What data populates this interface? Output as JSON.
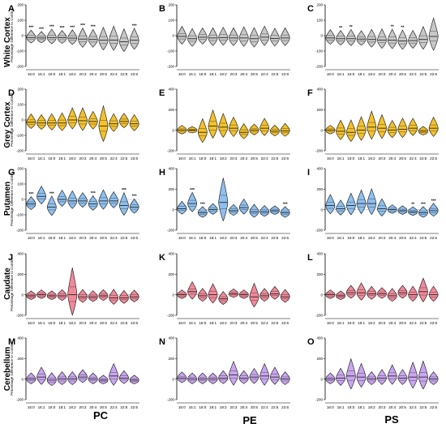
{
  "figure": {
    "rows": [
      {
        "label": "White Cortex",
        "color": "#c8c8c8"
      },
      {
        "label": "Grey Cortex",
        "color": "#f2c12e"
      },
      {
        "label": "Putamen",
        "color": "#8fc0ee"
      },
      {
        "label": "Caudate",
        "color": "#f08a9a"
      },
      {
        "label": "Cerebellum",
        "color": "#c9a7ee"
      }
    ],
    "columns": [
      "PC",
      "PE",
      "PS"
    ],
    "ylabel": "Percentage Difference to Control",
    "categories": [
      "16:0",
      "16:1",
      "18:0",
      "18:1",
      "18:2",
      "20:3",
      "20:4",
      "20:5",
      "22:4",
      "22:5",
      "22:6"
    ]
  },
  "chart_data": [
    {
      "panel": "A",
      "type": "violin",
      "ylim": [
        -200,
        200
      ],
      "yticks": [
        -200,
        -100,
        0,
        100,
        200
      ],
      "medians": [
        -12,
        -15,
        -12,
        -14,
        -16,
        -22,
        -25,
        -30,
        -28,
        -40,
        -30
      ],
      "spread": [
        40,
        35,
        45,
        40,
        45,
        60,
        55,
        70,
        75,
        70,
        65
      ],
      "stars": [
        "***",
        "***",
        "***",
        "***",
        "***",
        "***",
        "***",
        "",
        "",
        "",
        "***"
      ]
    },
    {
      "panel": "B",
      "type": "violin",
      "ylim": [
        -200,
        200
      ],
      "yticks": [
        -200,
        -100,
        0,
        100,
        200
      ],
      "medians": [
        -5,
        -20,
        -10,
        -15,
        -12,
        -15,
        -15,
        -20,
        -10,
        -18,
        -15
      ],
      "spread": [
        55,
        55,
        50,
        55,
        55,
        55,
        60,
        60,
        60,
        55,
        55
      ],
      "stars": [
        "",
        "",
        "",
        "",
        "",
        "",
        "",
        "",
        "",
        "",
        ""
      ]
    },
    {
      "panel": "C",
      "type": "violin",
      "ylim": [
        -200,
        200
      ],
      "yticks": [
        -200,
        -100,
        0,
        100,
        200
      ],
      "medians": [
        -15,
        -20,
        -20,
        -22,
        -25,
        -28,
        -30,
        -35,
        -32,
        -25,
        -5
      ],
      "spread": [
        45,
        45,
        50,
        45,
        55,
        60,
        60,
        60,
        55,
        70,
        100
      ],
      "stars": [
        "",
        "**",
        "**",
        "",
        "",
        "",
        "**",
        "**",
        "",
        "",
        ""
      ]
    },
    {
      "panel": "D",
      "type": "violin",
      "ylim": [
        -200,
        200
      ],
      "yticks": [
        -200,
        -100,
        0,
        100,
        200
      ],
      "medians": [
        -15,
        -20,
        -20,
        -20,
        0,
        -5,
        -10,
        -40,
        -25,
        -10,
        -25
      ],
      "spread": [
        45,
        45,
        50,
        55,
        65,
        70,
        55,
        110,
        55,
        45,
        50
      ],
      "stars": [
        "",
        "",
        "",
        "",
        "",
        "",
        "",
        "",
        "",
        "",
        ""
      ]
    },
    {
      "panel": "E",
      "type": "violin",
      "ylim": [
        -200,
        400
      ],
      "yticks": [
        -200,
        0,
        200,
        400
      ],
      "medians": [
        0,
        0,
        -20,
        40,
        30,
        20,
        -20,
        0,
        20,
        -10,
        -5
      ],
      "spread": [
        40,
        30,
        110,
        130,
        110,
        90,
        70,
        50,
        80,
        50,
        60
      ],
      "stars": [
        "",
        "",
        "",
        "",
        "",
        "",
        "",
        "",
        "",
        "",
        ""
      ]
    },
    {
      "panel": "F",
      "type": "violin",
      "ylim": [
        -200,
        400
      ],
      "yticks": [
        -200,
        0,
        200,
        400
      ],
      "medians": [
        0,
        -10,
        -20,
        0,
        30,
        20,
        0,
        10,
        20,
        -10,
        20
      ],
      "spread": [
        40,
        90,
        100,
        110,
        130,
        110,
        80,
        90,
        80,
        40,
        90
      ],
      "stars": [
        "",
        "",
        "",
        "",
        "",
        "",
        "",
        "",
        "",
        "",
        ""
      ]
    },
    {
      "panel": "G",
      "type": "violin",
      "ylim": [
        -200,
        200
      ],
      "yticks": [
        -200,
        -100,
        0,
        100,
        200
      ],
      "medians": [
        -30,
        20,
        -50,
        0,
        -10,
        -10,
        -30,
        -10,
        -10,
        -40,
        -50
      ],
      "spread": [
        40,
        55,
        60,
        50,
        55,
        45,
        45,
        60,
        50,
        70,
        45
      ],
      "stars": [
        "***",
        "",
        "***",
        "",
        "",
        "",
        "***",
        "",
        "",
        "***",
        "***"
      ]
    },
    {
      "panel": "H",
      "type": "violin",
      "ylim": [
        -200,
        400
      ],
      "yticks": [
        -200,
        0,
        200,
        400
      ],
      "medians": [
        10,
        60,
        -30,
        0,
        70,
        -10,
        20,
        -20,
        -20,
        -10,
        -30
      ],
      "spread": [
        60,
        90,
        50,
        50,
        200,
        50,
        70,
        60,
        50,
        40,
        50
      ],
      "stars": [
        "",
        "***",
        "***",
        "",
        "",
        "",
        "",
        "",
        "",
        "",
        "***"
      ]
    },
    {
      "panel": "I",
      "type": "violin",
      "ylim": [
        -200,
        400
      ],
      "yticks": [
        -200,
        0,
        200,
        400
      ],
      "medians": [
        40,
        10,
        40,
        60,
        60,
        10,
        0,
        -10,
        -20,
        -30,
        -10
      ],
      "spread": [
        90,
        70,
        100,
        110,
        120,
        80,
        40,
        40,
        40,
        50,
        60
      ],
      "stars": [
        "",
        "",
        "",
        "",
        "",
        "",
        "",
        "",
        "**",
        "***",
        "***"
      ]
    },
    {
      "panel": "J",
      "type": "violin",
      "ylim": [
        -200,
        400
      ],
      "yticks": [
        -200,
        0,
        200,
        400
      ],
      "medians": [
        -10,
        0,
        -10,
        -10,
        0,
        -20,
        -20,
        -10,
        -30,
        -30,
        -20
      ],
      "spread": [
        40,
        40,
        40,
        50,
        220,
        60,
        50,
        50,
        70,
        60,
        55
      ],
      "stars": [
        "",
        "",
        "",
        "",
        "",
        "",
        "",
        "",
        "",
        "",
        ""
      ]
    },
    {
      "panel": "K",
      "type": "violin",
      "ylim": [
        -200,
        400
      ],
      "yticks": [
        -200,
        0,
        200,
        400
      ],
      "medians": [
        0,
        30,
        -10,
        0,
        -40,
        10,
        0,
        -20,
        -10,
        10,
        -20
      ],
      "spread": [
        40,
        80,
        60,
        90,
        60,
        40,
        40,
        110,
        60,
        60,
        60
      ],
      "stars": [
        "",
        "",
        "",
        "",
        "",
        "",
        "",
        "",
        "",
        "",
        ""
      ]
    },
    {
      "panel": "L",
      "type": "violin",
      "ylim": [
        -200,
        400
      ],
      "yticks": [
        -200,
        0,
        200,
        400
      ],
      "medians": [
        0,
        -10,
        20,
        20,
        10,
        10,
        -10,
        20,
        0,
        30,
        0
      ],
      "spread": [
        40,
        40,
        60,
        80,
        60,
        50,
        60,
        60,
        70,
        110,
        70
      ],
      "stars": [
        "",
        "",
        "",
        "",
        "",
        "",
        "",
        "",
        "",
        "",
        ""
      ]
    },
    {
      "panel": "M",
      "type": "violin",
      "ylim": [
        -200,
        400
      ],
      "yticks": [
        -200,
        0,
        200,
        400
      ],
      "medians": [
        0,
        20,
        -10,
        0,
        0,
        20,
        0,
        -10,
        30,
        10,
        -10
      ],
      "spread": [
        50,
        80,
        60,
        60,
        60,
        60,
        50,
        40,
        100,
        60,
        40
      ],
      "stars": [
        "",
        "",
        "",
        "",
        "",
        "",
        "",
        "",
        "",
        "",
        ""
      ]
    },
    {
      "panel": "N",
      "type": "violin",
      "ylim": [
        -200,
        400
      ],
      "yticks": [
        -200,
        0,
        200,
        400
      ],
      "medians": [
        10,
        0,
        0,
        0,
        10,
        40,
        10,
        20,
        30,
        20,
        0
      ],
      "spread": [
        50,
        50,
        50,
        50,
        60,
        110,
        60,
        70,
        100,
        80,
        60
      ],
      "stars": [
        "",
        "",
        "",
        "",
        "",
        "",
        "",
        "",
        "",
        "",
        ""
      ]
    },
    {
      "panel": "O",
      "type": "violin",
      "ylim": [
        -200,
        400
      ],
      "yticks": [
        -200,
        0,
        200,
        400
      ],
      "medians": [
        0,
        10,
        30,
        20,
        0,
        10,
        30,
        10,
        20,
        20,
        0
      ],
      "spread": [
        50,
        80,
        140,
        110,
        60,
        70,
        90,
        70,
        120,
        130,
        60
      ],
      "stars": [
        "",
        "",
        "",
        "",
        "",
        "",
        "",
        "",
        "",
        "",
        ""
      ]
    }
  ]
}
